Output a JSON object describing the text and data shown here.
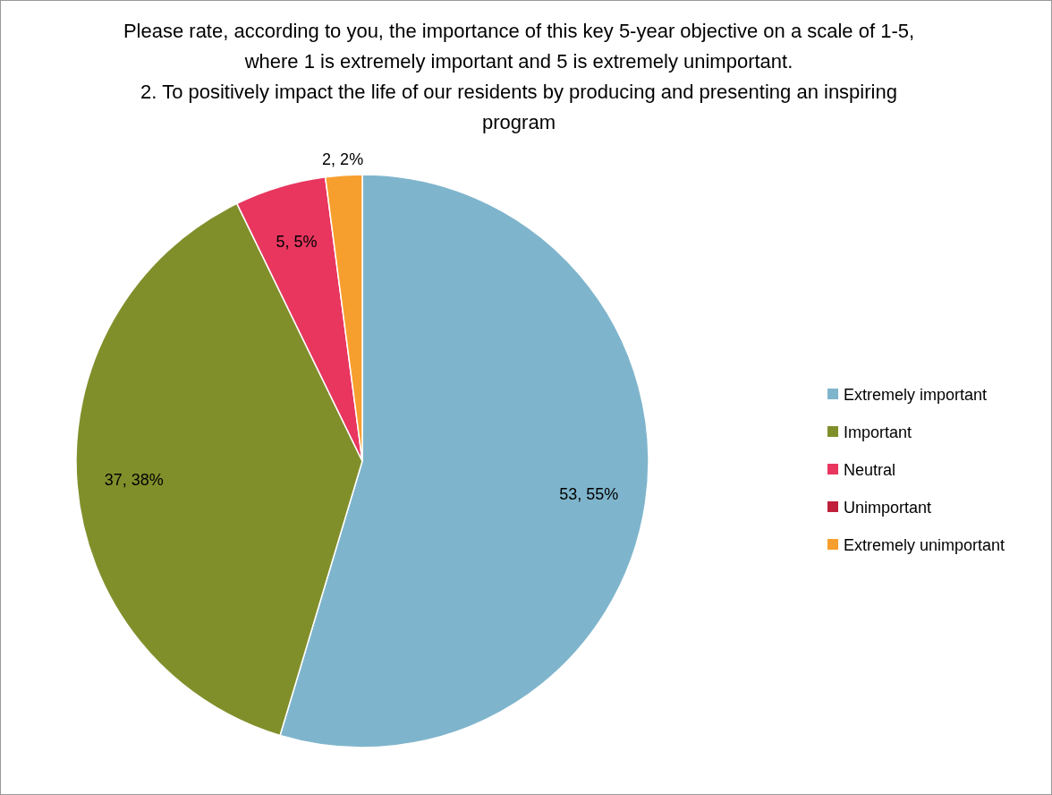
{
  "chart_data": {
    "type": "pie",
    "title": "Please rate, according to you, the importance of this key 5-year objective on a scale of 1-5, where 1 is extremely important and 5 is extremely unimportant.",
    "subtitle": "2. To positively impact the life of our residents by producing and presenting an inspiring program",
    "categories": [
      "Extremely important",
      "Important",
      "Neutral",
      "Unimportant",
      "Extremely unimportant"
    ],
    "values": [
      53,
      37,
      5,
      0,
      2
    ],
    "colors": [
      "#7fb5cc",
      "#818f2b",
      "#e8365f",
      "#c0203a",
      "#f79f2e"
    ],
    "value_labels": [
      "53, 55%",
      "37, 38%",
      "5, 5%",
      null,
      "2, 2%"
    ],
    "legend": "right"
  }
}
